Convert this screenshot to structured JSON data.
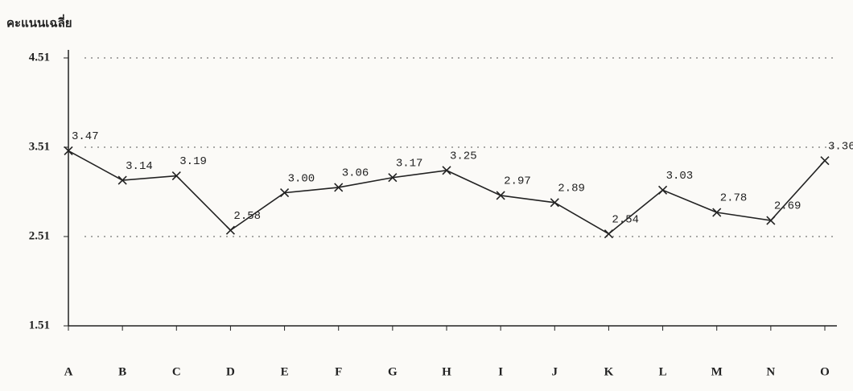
{
  "chart_data": {
    "type": "line",
    "y_label": "คะแนนเฉลี่ย",
    "categories": [
      "A",
      "B",
      "C",
      "D",
      "E",
      "F",
      "G",
      "H",
      "I",
      "J",
      "K",
      "L",
      "M",
      "N",
      "O"
    ],
    "values": [
      3.47,
      3.14,
      3.19,
      2.58,
      3.0,
      3.06,
      3.17,
      3.25,
      2.97,
      2.89,
      2.54,
      3.03,
      2.78,
      2.69,
      3.36
    ],
    "value_labels": [
      "3.47",
      "3.14",
      "3.19",
      "2.58",
      "3.00",
      "3.06",
      "3.17",
      "3.25",
      "2.97",
      "2.89",
      "2.54",
      "3.03",
      "2.78",
      "2.69",
      "3.36"
    ],
    "color": "#222222",
    "ylim": [
      1.51,
      4.51
    ],
    "yticks": [
      1.51,
      2.51,
      3.51,
      4.51
    ],
    "grid": true
  }
}
